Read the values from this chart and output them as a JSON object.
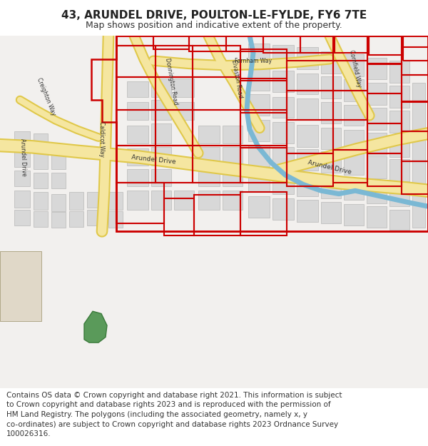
{
  "title": "43, ARUNDEL DRIVE, POULTON-LE-FYLDE, FY6 7TE",
  "subtitle": "Map shows position and indicative extent of the property.",
  "footer": "Contains OS data © Crown copyright and database right 2021. This information is subject\nto Crown copyright and database rights 2023 and is reproduced with the permission of\nHM Land Registry. The polygons (including the associated geometry, namely x, y\nco-ordinates) are subject to Crown copyright and database rights 2023 Ordnance Survey\n100026316.",
  "map_bg": "#f2f0ee",
  "road_color": "#f5e6a0",
  "road_outline_color": "#e0c84a",
  "building_color": "#d8d8d8",
  "building_outline": "#b8b8b8",
  "red_outline": "#cc0000",
  "river_color": "#7ab8d4",
  "green_color": "#5a9a5a",
  "beige_building": "#e0d8c8",
  "beige_outline": "#b0a888",
  "title_fontsize": 11,
  "subtitle_fontsize": 9,
  "footer_fontsize": 7.5
}
